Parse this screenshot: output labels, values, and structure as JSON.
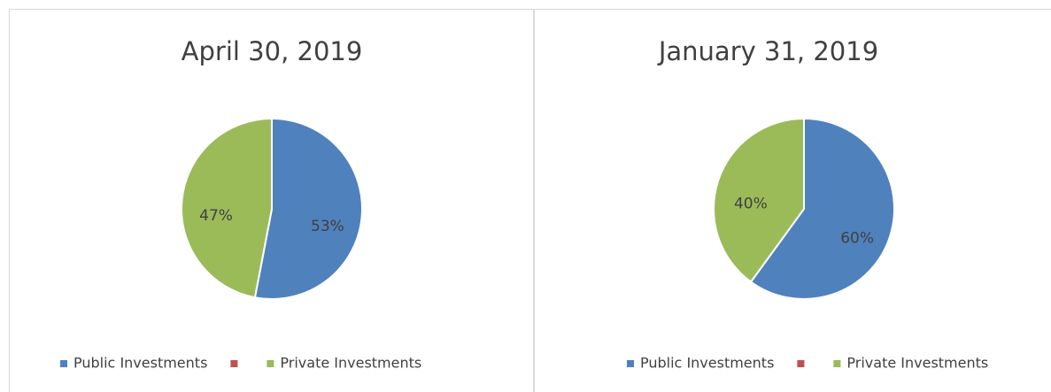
{
  "chart_data": [
    {
      "type": "pie",
      "title": "April 30, 2019",
      "categories": [
        "Public Investments",
        null,
        "Private Investments"
      ],
      "values": [
        53,
        0,
        47
      ],
      "value_labels": [
        "53%",
        null,
        "47%"
      ],
      "colors": [
        "#4f81bd",
        "#c0504d",
        "#9bbb59"
      ],
      "legend": "bottom"
    },
    {
      "type": "pie",
      "title": "January 31, 2019",
      "categories": [
        "Public Investments",
        null,
        "Private Investments"
      ],
      "values": [
        60,
        0,
        40
      ],
      "value_labels": [
        "60%",
        null,
        "40%"
      ],
      "colors": [
        "#4f81bd",
        "#c0504d",
        "#9bbb59"
      ],
      "legend": "bottom"
    }
  ]
}
